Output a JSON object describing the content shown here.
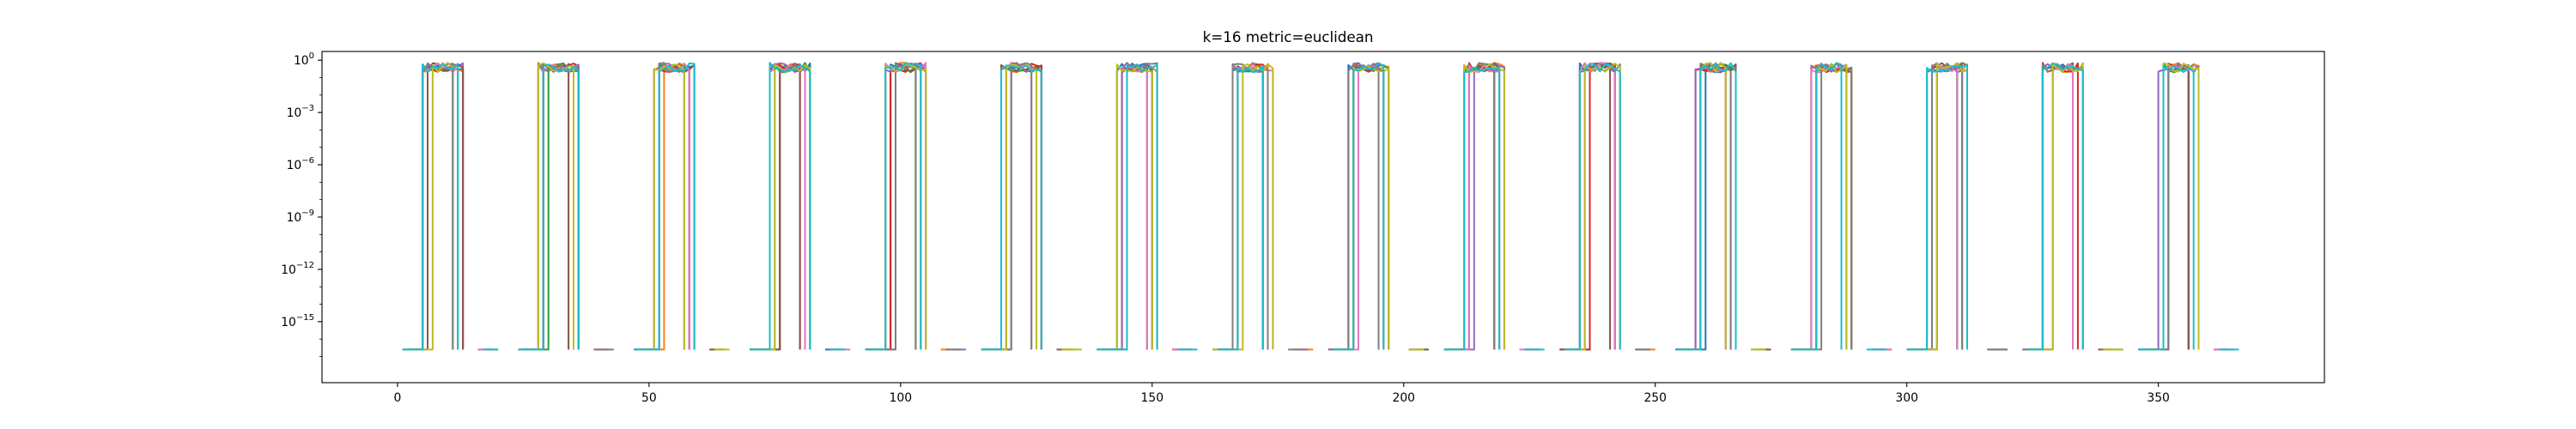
{
  "chart_data": {
    "type": "line",
    "title": "k=16 metric=euclidean",
    "xlabel": "",
    "ylabel": "",
    "y_scale": "log",
    "xlim": [
      -15,
      383
    ],
    "ylim_log10": [
      -18.5,
      0.5
    ],
    "grid": false,
    "legend": "none",
    "x_ticks": [
      {
        "value": 0,
        "label": "0"
      },
      {
        "value": 50,
        "label": "50"
      },
      {
        "value": 100,
        "label": "100"
      },
      {
        "value": 150,
        "label": "150"
      },
      {
        "value": 200,
        "label": "200"
      },
      {
        "value": 250,
        "label": "250"
      },
      {
        "value": 300,
        "label": "300"
      },
      {
        "value": 350,
        "label": "350"
      }
    ],
    "y_ticks": [
      {
        "exp": 0,
        "base": "10",
        "sup": "0"
      },
      {
        "exp": -3,
        "base": "10",
        "sup": "−3"
      },
      {
        "exp": -6,
        "base": "10",
        "sup": "−6"
      },
      {
        "exp": -9,
        "base": "10",
        "sup": "−9"
      },
      {
        "exp": -12,
        "base": "10",
        "sup": "−12"
      },
      {
        "exp": -15,
        "base": "10",
        "sup": "−15"
      }
    ],
    "series_colors": [
      "#1f77b4",
      "#ff7f0e",
      "#2ca02c",
      "#d62728",
      "#9467bd",
      "#8c564b",
      "#e377c2",
      "#7f7f7f",
      "#bcbd22",
      "#17becf"
    ],
    "pattern": {
      "description": "16 clusters of near-unit probabilities separated by gaps where values fall to ~1e-16 floor",
      "cluster_start_x": [
        5,
        28,
        51,
        74,
        97,
        120,
        143,
        166,
        189,
        212,
        235,
        258,
        281,
        304,
        327,
        350
      ],
      "period": 23,
      "floor_log10": -16.6,
      "peak_log10": [
        -0.5,
        0.0
      ]
    }
  }
}
